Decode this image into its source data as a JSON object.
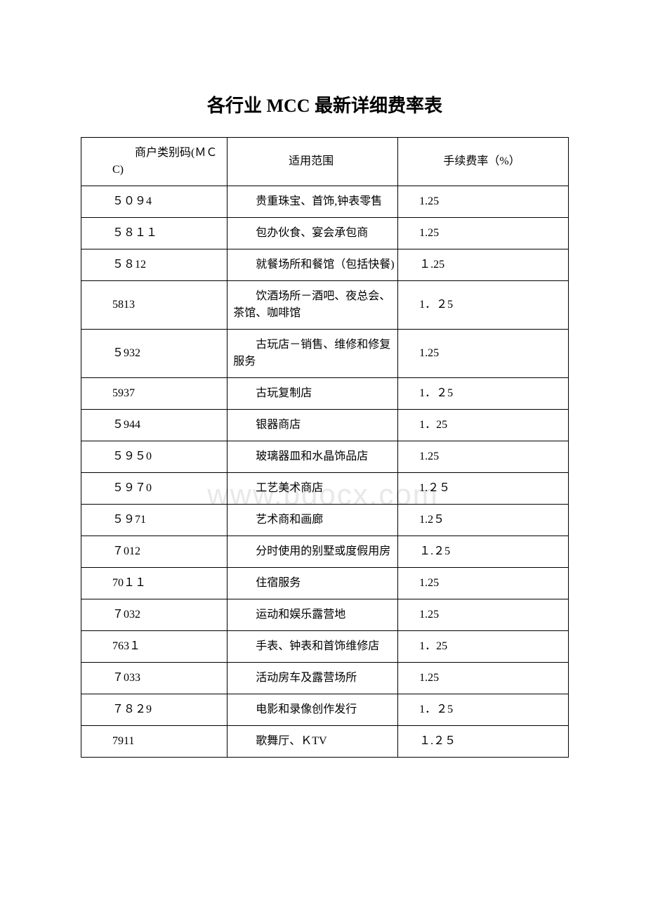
{
  "title": "各行业 MCC 最新详细费率表",
  "watermark": "www.bdocx.com",
  "table": {
    "header": {
      "col1_line1": "　　商户类别码(ＭＣ",
      "col1_line2": "C)",
      "col2": "适用范围",
      "col3": "手续费率（%）"
    },
    "rows": [
      {
        "c1": "５０９4",
        "c2": "　　贵重珠宝、首饰,钟表零售",
        "c3": "1.25"
      },
      {
        "c1": "５８１１",
        "c2": "　　包办伙食、宴会承包商",
        "c3": "1.25"
      },
      {
        "c1": "５８12",
        "c2": "　　就餐场所和餐馆（包括快餐)",
        "c3": "１.25"
      },
      {
        "c1": "5813",
        "c2": "　　饮酒场所－酒吧、夜总会、茶馆、咖啡馆",
        "c3": "1．２5"
      },
      {
        "c1": "５932",
        "c2": "　　古玩店－销售、维修和修复服务",
        "c3": "1.25"
      },
      {
        "c1": "5937",
        "c2": "　　古玩复制店",
        "c3": "1．２5"
      },
      {
        "c1": "５944",
        "c2": "　　银器商店",
        "c3": "1．25"
      },
      {
        "c1": "５９５0",
        "c2": "　　玻璃器皿和水晶饰品店",
        "c3": "1.25"
      },
      {
        "c1": "５９７0",
        "c2": "　　工艺美术商店",
        "c3": "1.２５"
      },
      {
        "c1": "５９71",
        "c2": "　　艺术商和画廊",
        "c3": "1.2５"
      },
      {
        "c1": "７012",
        "c2": "　　分时使用的别墅或度假用房",
        "c3": "１.２5"
      },
      {
        "c1": "70１１",
        "c2": "　　住宿服务",
        "c3": "1.25"
      },
      {
        "c1": "７032",
        "c2": "　　运动和娱乐露营地",
        "c3": "1.25"
      },
      {
        "c1": "763１",
        "c2": "　　手表、钟表和首饰维修店",
        "c3": "1．25"
      },
      {
        "c1": "７033",
        "c2": "　　活动房车及露营场所",
        "c3": "1.25"
      },
      {
        "c1": "７８２9",
        "c2": "　　电影和录像创作发行",
        "c3": "1．２5"
      },
      {
        "c1": "7911",
        "c2": "　　歌舞厅、ＫTV",
        "c3": "１.２５"
      }
    ]
  }
}
